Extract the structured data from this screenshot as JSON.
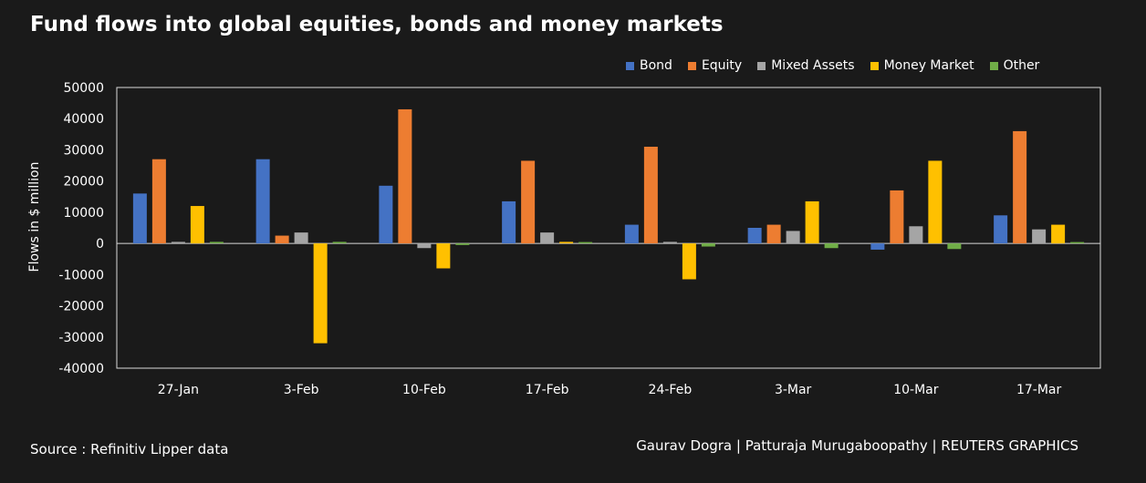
{
  "chart_data": {
    "type": "bar",
    "title": "Fund flows into global equities, bonds and money markets",
    "ylabel": "Flows in $ million",
    "xlabel": "",
    "ylim": [
      -40000,
      50000
    ],
    "yticks": [
      50000,
      40000,
      30000,
      20000,
      10000,
      0,
      -10000,
      -20000,
      -30000,
      -40000
    ],
    "categories": [
      "27-Jan",
      "3-Feb",
      "10-Feb",
      "17-Feb",
      "24-Feb",
      "3-Mar",
      "10-Mar",
      "17-Mar"
    ],
    "legend_position": "top-right",
    "grid": false,
    "series": [
      {
        "name": "Bond",
        "color": "#4472c4",
        "values": [
          16000,
          27000,
          18500,
          13500,
          6000,
          5000,
          -2000,
          9000
        ]
      },
      {
        "name": "Equity",
        "color": "#ed7d31",
        "values": [
          27000,
          2500,
          43000,
          26500,
          31000,
          6000,
          17000,
          36000
        ]
      },
      {
        "name": "Mixed Assets",
        "color": "#a5a5a5",
        "values": [
          500,
          3500,
          -1500,
          3500,
          500,
          4000,
          5500,
          4500
        ]
      },
      {
        "name": "Money Market",
        "color": "#ffc000",
        "values": [
          12000,
          -32000,
          -8000,
          500,
          -11500,
          13500,
          26500,
          6000
        ]
      },
      {
        "name": "Other",
        "color": "#70ad47",
        "values": [
          500,
          500,
          -500,
          200,
          -1000,
          -1500,
          -1800,
          200
        ]
      }
    ]
  },
  "footer": {
    "source": "Source : Refinitiv Lipper data",
    "credits": "Gaurav Dogra | Patturaja Murugaboopathy | REUTERS GRAPHICS"
  }
}
